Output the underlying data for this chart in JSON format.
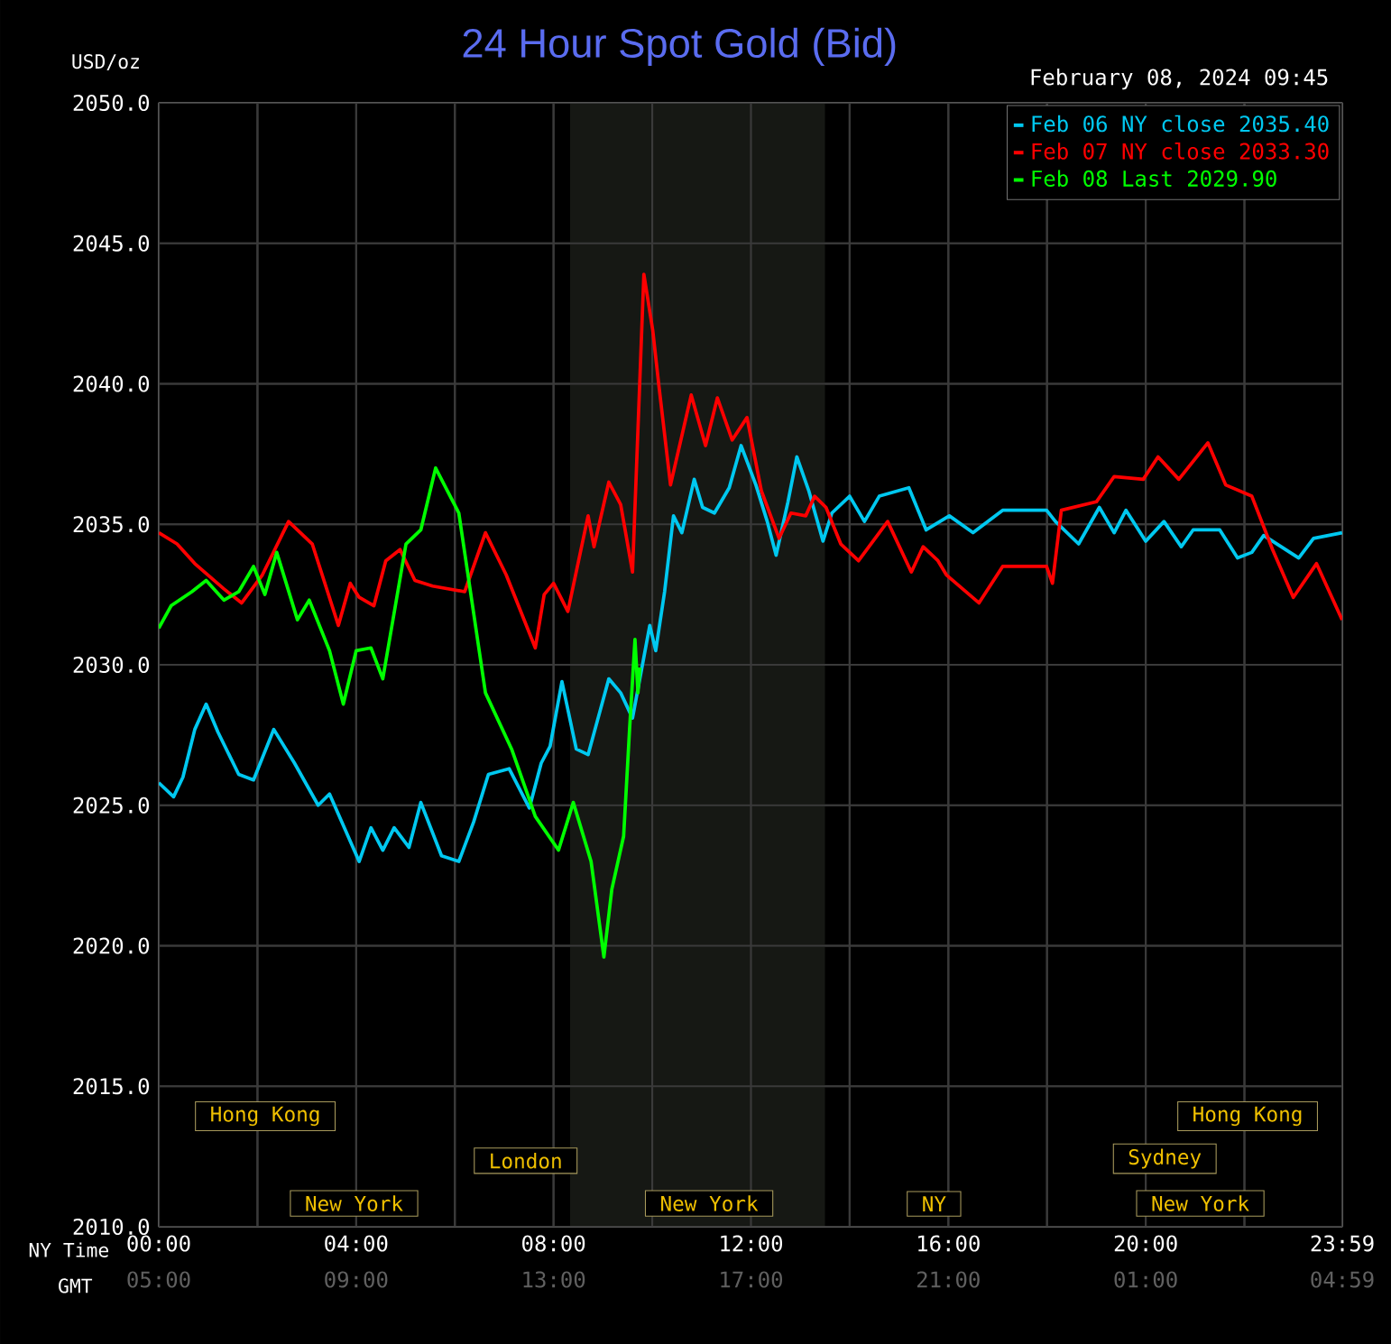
{
  "chart_data": {
    "type": "line",
    "title": "24 Hour Spot Gold (Bid)",
    "subtitle": "February 08, 2024 09:45",
    "ylabel": "USD/oz",
    "xlabel": "NY Time",
    "x2label": "GMT",
    "xlim": [
      0,
      23.983
    ],
    "ylim": [
      2010,
      2050
    ],
    "xticks": [
      {
        "value": 0,
        "label": "00:00"
      },
      {
        "value": 2,
        "label": null
      },
      {
        "value": 4,
        "label": "04:00"
      },
      {
        "value": 6,
        "label": null
      },
      {
        "value": 8,
        "label": "08:00"
      },
      {
        "value": 10,
        "label": null
      },
      {
        "value": 12,
        "label": "12:00"
      },
      {
        "value": 14,
        "label": null
      },
      {
        "value": 16,
        "label": "16:00"
      },
      {
        "value": 18,
        "label": null
      },
      {
        "value": 20,
        "label": "20:00"
      },
      {
        "value": 22,
        "label": null
      },
      {
        "value": 23.983,
        "label": "23:59"
      }
    ],
    "x2lim": [
      "2024-02-08T05:00",
      "2024-02-09T04:59"
    ],
    "x2ticks": [
      {
        "value": "2024-02-08T05:00",
        "label": "05:00"
      },
      {
        "value": "2024-02-08T09:00",
        "label": "09:00"
      },
      {
        "value": "2024-02-08T13:00",
        "label": "13:00"
      },
      {
        "value": "2024-02-08T17:00",
        "label": "17:00"
      },
      {
        "value": "2024-02-08T21:00",
        "label": "21:00"
      },
      {
        "value": "2024-02-09T01:00",
        "label": "01:00"
      },
      {
        "value": "2024-02-09T04:59",
        "label": "04:59"
      }
    ],
    "yticks": [
      {
        "value": 2010,
        "label": "2010.0"
      },
      {
        "value": 2015,
        "label": "2015.0"
      },
      {
        "value": 2020,
        "label": "2020.0"
      },
      {
        "value": 2025,
        "label": "2025.0"
      },
      {
        "value": 2030,
        "label": "2030.0"
      },
      {
        "value": 2035,
        "label": "2035.0"
      },
      {
        "value": 2040,
        "label": "2040.0"
      },
      {
        "value": 2045,
        "label": "2045.0"
      },
      {
        "value": 2050,
        "label": "2050.0"
      }
    ],
    "grid": true,
    "legend": "top right",
    "bands": [
      {
        "axis": "x",
        "from": 8.333,
        "to": 13.5,
        "color": "#161814"
      }
    ],
    "annotations": [
      "Hong Kong",
      "London",
      "New York",
      "New York",
      "NY",
      "Hong Kong",
      "Sydney",
      "New York"
    ],
    "series": [
      {
        "name": "Feb 06 NY close 2035.40",
        "color": "#00c8f0",
        "x": [
          0,
          0.3,
          0.49,
          0.73,
          0.96,
          1.2,
          1.62,
          1.92,
          2.33,
          2.75,
          3.23,
          3.46,
          4.06,
          4.3,
          4.54,
          4.77,
          5.07,
          5.31,
          5.73,
          6.08,
          6.38,
          6.68,
          7.1,
          7.51,
          7.75,
          7.93,
          8.17,
          8.46,
          8.7,
          9.12,
          9.36,
          9.6,
          9.95,
          10.07,
          10.25,
          10.43,
          10.6,
          10.85,
          11.02,
          11.26,
          11.56,
          11.8,
          12.1,
          12.33,
          12.51,
          12.75,
          12.93,
          13.17,
          13.46,
          13.64,
          14.0,
          14.3,
          14.6,
          15.2,
          15.55,
          16.02,
          16.5,
          17.1,
          17.99,
          18.17,
          18.64,
          19.06,
          19.36,
          19.6,
          20.0,
          20.37,
          20.72,
          20.96,
          21.5,
          21.86,
          22.15,
          22.39,
          23.1,
          23.4,
          23.98
        ],
        "values": [
          2025.8,
          2025.3,
          2026.0,
          2027.7,
          2028.6,
          2027.6,
          2026.1,
          2025.9,
          2027.7,
          2026.5,
          2025.0,
          2025.4,
          2023.0,
          2024.2,
          2023.4,
          2024.2,
          2023.5,
          2025.1,
          2023.2,
          2023.0,
          2024.4,
          2026.1,
          2026.3,
          2024.9,
          2026.5,
          2027.1,
          2029.4,
          2027.0,
          2026.8,
          2029.5,
          2029.0,
          2028.1,
          2031.4,
          2030.5,
          2032.6,
          2035.3,
          2034.7,
          2036.6,
          2035.6,
          2035.4,
          2036.3,
          2037.8,
          2036.4,
          2035.1,
          2033.9,
          2035.8,
          2037.4,
          2036.2,
          2034.4,
          2035.4,
          2036.0,
          2035.1,
          2036.0,
          2036.3,
          2034.8,
          2035.3,
          2034.7,
          2035.5,
          2035.5,
          2035.1,
          2034.3,
          2035.6,
          2034.7,
          2035.5,
          2034.4,
          2035.1,
          2034.2,
          2034.8,
          2034.8,
          2033.8,
          2034.0,
          2034.6,
          2033.8,
          2034.5,
          2034.7
        ]
      },
      {
        "name": "Feb 07 NY close 2033.30",
        "color": "#ff0000",
        "x": [
          0,
          0.37,
          0.73,
          1.32,
          1.68,
          2.1,
          2.63,
          3.11,
          3.64,
          3.88,
          4.06,
          4.36,
          4.6,
          4.89,
          5.19,
          5.55,
          6.2,
          6.62,
          7.04,
          7.63,
          7.81,
          8.0,
          8.29,
          8.7,
          8.82,
          9.12,
          9.36,
          9.6,
          9.83,
          10.01,
          10.13,
          10.37,
          10.79,
          11.08,
          11.32,
          11.62,
          11.92,
          12.21,
          12.57,
          12.81,
          13.11,
          13.29,
          13.52,
          13.82,
          14.18,
          14.77,
          15.25,
          15.49,
          15.79,
          15.96,
          16.62,
          17.1,
          17.99,
          18.11,
          18.29,
          19.0,
          19.36,
          19.95,
          20.25,
          20.67,
          21.26,
          21.62,
          22.15,
          22.57,
          22.99,
          23.46,
          23.98
        ],
        "values": [
          2034.7,
          2034.3,
          2033.6,
          2032.7,
          2032.2,
          2033.2,
          2035.1,
          2034.3,
          2031.4,
          2032.9,
          2032.4,
          2032.1,
          2033.7,
          2034.1,
          2033.0,
          2032.8,
          2032.6,
          2034.7,
          2033.2,
          2030.6,
          2032.5,
          2032.9,
          2031.9,
          2035.3,
          2034.2,
          2036.5,
          2035.7,
          2033.3,
          2043.9,
          2041.9,
          2040.0,
          2036.4,
          2039.6,
          2037.8,
          2039.5,
          2038.0,
          2038.8,
          2036.2,
          2034.5,
          2035.4,
          2035.3,
          2036.0,
          2035.6,
          2034.3,
          2033.7,
          2035.1,
          2033.3,
          2034.2,
          2033.7,
          2033.2,
          2032.2,
          2033.5,
          2033.5,
          2032.9,
          2035.5,
          2035.8,
          2036.7,
          2036.6,
          2037.4,
          2036.6,
          2037.9,
          2036.4,
          2036.0,
          2034.1,
          2032.4,
          2033.6,
          2031.6
        ]
      },
      {
        "name": "Feb 08 Last 2029.90",
        "color": "#00ff00",
        "x": [
          0,
          0.25,
          0.67,
          0.96,
          1.32,
          1.62,
          1.92,
          2.15,
          2.39,
          2.81,
          3.05,
          3.46,
          3.74,
          4.0,
          4.3,
          4.54,
          5.01,
          5.31,
          5.61,
          6.08,
          6.62,
          7.15,
          7.63,
          8.1,
          8.4,
          8.76,
          9.02,
          9.18,
          9.42,
          9.54,
          9.65,
          9.71,
          9.75
        ],
        "values": [
          2031.3,
          2032.1,
          2032.6,
          2033.0,
          2032.3,
          2032.6,
          2033.5,
          2032.5,
          2034.0,
          2031.6,
          2032.3,
          2030.5,
          2028.6,
          2030.5,
          2030.6,
          2029.5,
          2034.3,
          2034.8,
          2037.0,
          2035.4,
          2029.0,
          2027.0,
          2024.6,
          2023.4,
          2025.1,
          2023.0,
          2019.6,
          2022.0,
          2023.9,
          2027.7,
          2030.9,
          2029.0,
          2029.9
        ]
      }
    ]
  }
}
